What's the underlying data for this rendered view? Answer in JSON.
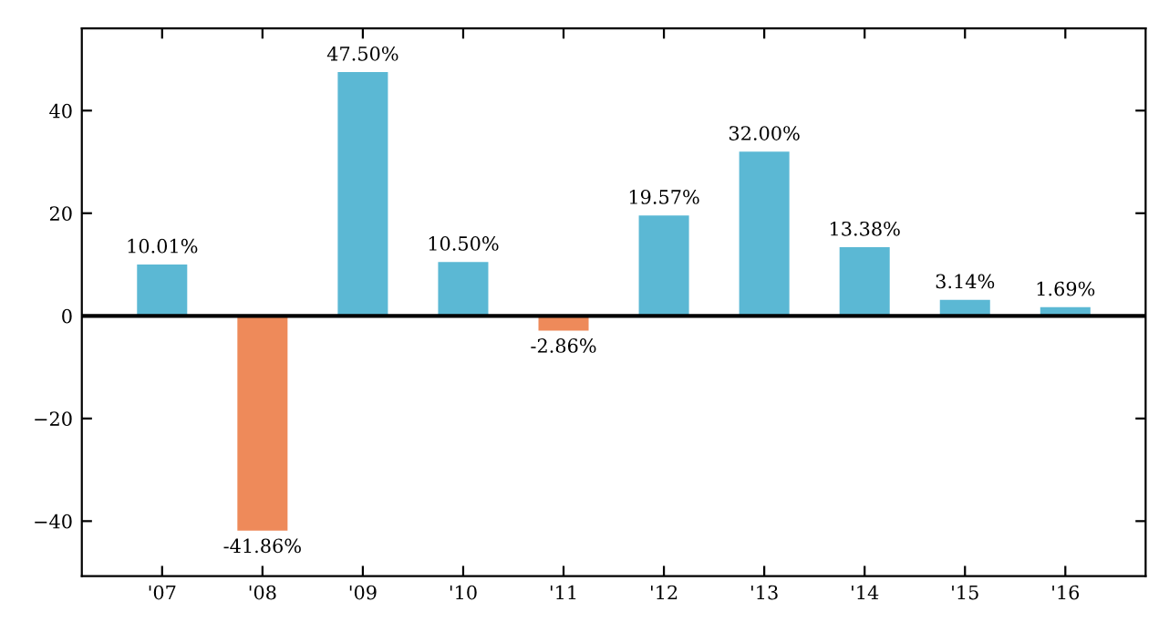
{
  "chart_data": {
    "type": "bar",
    "categories": [
      "'07",
      "'08",
      "'09",
      "'10",
      "'11",
      "'12",
      "'13",
      "'14",
      "'15",
      "'16"
    ],
    "values": [
      10.01,
      -41.86,
      47.5,
      10.5,
      -2.86,
      19.57,
      32.0,
      13.38,
      3.14,
      1.69
    ],
    "value_labels": [
      "10.01%",
      "-41.86%",
      "47.50%",
      "10.50%",
      "-2.86%",
      "19.57%",
      "32.00%",
      "13.38%",
      "3.14%",
      "1.69%"
    ],
    "colors": [
      "#5bb8d4",
      "#ee8a5a",
      "#5bb8d4",
      "#5bb8d4",
      "#ee8a5a",
      "#5bb8d4",
      "#5bb8d4",
      "#5bb8d4",
      "#5bb8d4",
      "#5bb8d4"
    ],
    "ylim": [
      -50.7,
      56
    ],
    "yticks": [
      -40,
      -20,
      0,
      20,
      40
    ],
    "ref_lines": [
      {
        "axis": "y",
        "value": 0,
        "color": "#000000"
      }
    ],
    "grid": false,
    "legend": false
  }
}
